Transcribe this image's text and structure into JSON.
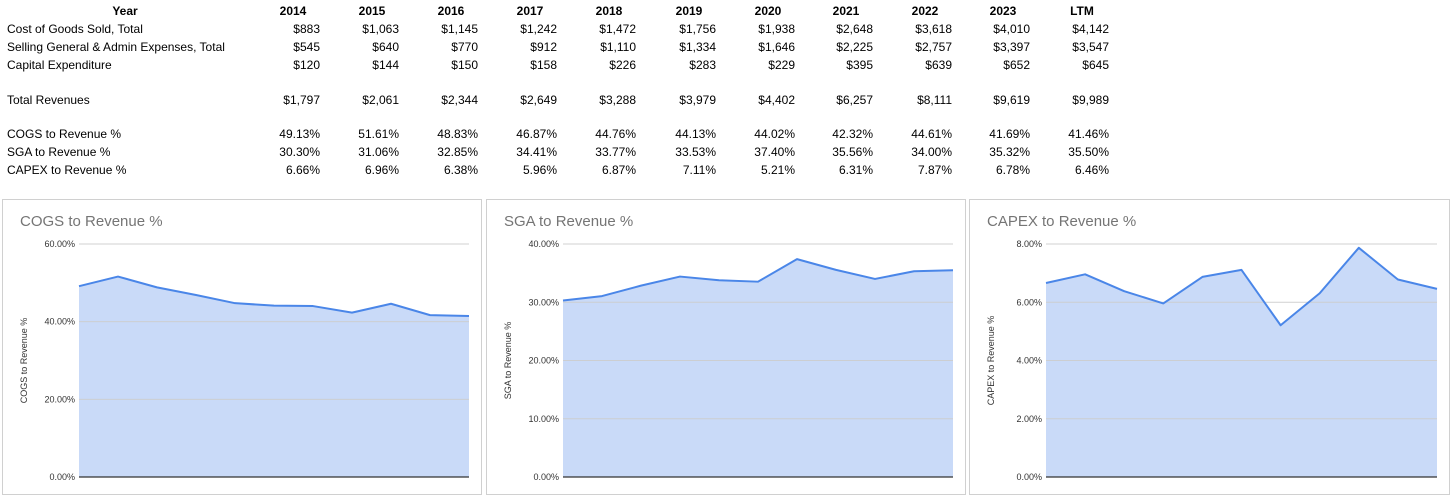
{
  "table": {
    "header_label": "Year",
    "years": [
      "2014",
      "2015",
      "2016",
      "2017",
      "2018",
      "2019",
      "2020",
      "2021",
      "2022",
      "2023",
      "LTM"
    ],
    "rows": [
      {
        "label": "Cost of Goods Sold, Total",
        "values": [
          "$883",
          "$1,063",
          "$1,145",
          "$1,242",
          "$1,472",
          "$1,756",
          "$1,938",
          "$2,648",
          "$3,618",
          "$4,010",
          "$4,142"
        ]
      },
      {
        "label": "Selling General & Admin Expenses, Total",
        "values": [
          "$545",
          "$640",
          "$770",
          "$912",
          "$1,110",
          "$1,334",
          "$1,646",
          "$2,225",
          "$2,757",
          "$3,397",
          "$3,547"
        ]
      },
      {
        "label": "Capital Expenditure",
        "values": [
          "$120",
          "$144",
          "$150",
          "$158",
          "$226",
          "$283",
          "$229",
          "$395",
          "$639",
          "$652",
          "$645"
        ]
      },
      {
        "label": "Total Revenues",
        "values": [
          "$1,797",
          "$2,061",
          "$2,344",
          "$2,649",
          "$3,288",
          "$3,979",
          "$4,402",
          "$6,257",
          "$8,111",
          "$9,619",
          "$9,989"
        ]
      },
      {
        "label": "COGS to Revenue %",
        "values": [
          "49.13%",
          "51.61%",
          "48.83%",
          "46.87%",
          "44.76%",
          "44.13%",
          "44.02%",
          "42.32%",
          "44.61%",
          "41.69%",
          "41.46%"
        ]
      },
      {
        "label": "SGA to Revenue %",
        "values": [
          "30.30%",
          "31.06%",
          "32.85%",
          "34.41%",
          "33.77%",
          "33.53%",
          "37.40%",
          "35.56%",
          "34.00%",
          "35.32%",
          "35.50%"
        ]
      },
      {
        "label": "CAPEX to Revenue %",
        "values": [
          "6.66%",
          "6.96%",
          "6.38%",
          "5.96%",
          "6.87%",
          "7.11%",
          "5.21%",
          "6.31%",
          "7.87%",
          "6.78%",
          "6.46%"
        ]
      }
    ]
  },
  "colors": {
    "line": "#4a86e8",
    "fill": "#c9daf8",
    "grid": "#cccccc",
    "axis": "#333333",
    "title": "#757575"
  },
  "chart_data": [
    {
      "type": "area",
      "title": "COGS to Revenue %",
      "ylabel": "COGS to Revenue %",
      "xlabel": "",
      "ylim": [
        0,
        60
      ],
      "yticks": [
        0,
        20,
        40,
        60
      ],
      "ytick_labels": [
        "0.00%",
        "20.00%",
        "40.00%",
        "60.00%"
      ],
      "grid": true,
      "values": [
        49.13,
        51.61,
        48.83,
        46.87,
        44.76,
        44.13,
        44.02,
        42.32,
        44.61,
        41.69,
        41.46
      ]
    },
    {
      "type": "area",
      "title": "SGA to Revenue %",
      "ylabel": "SGA to Revenue %",
      "xlabel": "",
      "ylim": [
        0,
        40
      ],
      "yticks": [
        0,
        10,
        20,
        30,
        40
      ],
      "ytick_labels": [
        "0.00%",
        "10.00%",
        "20.00%",
        "30.00%",
        "40.00%"
      ],
      "grid": true,
      "values": [
        30.3,
        31.06,
        32.85,
        34.41,
        33.77,
        33.53,
        37.4,
        35.56,
        34.0,
        35.32,
        35.5
      ]
    },
    {
      "type": "area",
      "title": "CAPEX to Revenue %",
      "ylabel": "CAPEX to Revenue %",
      "xlabel": "",
      "ylim": [
        0,
        8
      ],
      "yticks": [
        0,
        2,
        4,
        6,
        8
      ],
      "ytick_labels": [
        "0.00%",
        "2.00%",
        "4.00%",
        "6.00%",
        "8.00%"
      ],
      "grid": true,
      "values": [
        6.66,
        6.96,
        6.38,
        5.96,
        6.87,
        7.11,
        5.21,
        6.31,
        7.87,
        6.78,
        6.46
      ]
    }
  ]
}
